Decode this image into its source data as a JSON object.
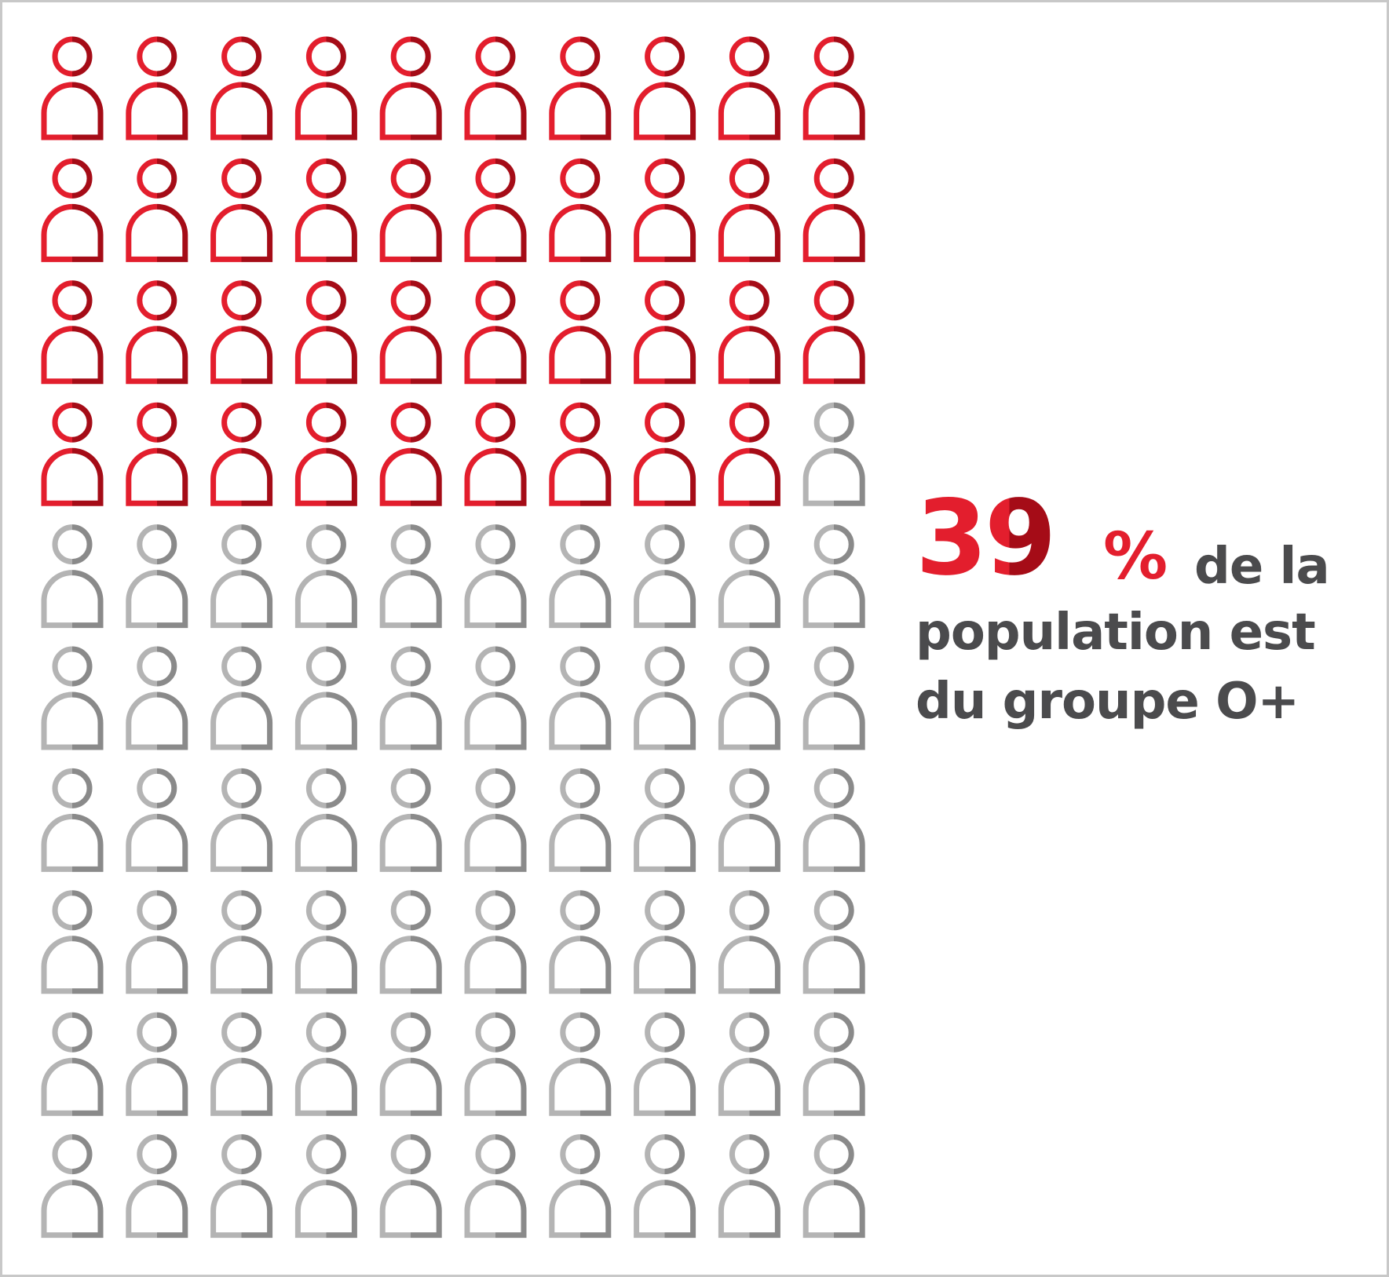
{
  "chart_data": {
    "type": "pictogram",
    "grid": {
      "rows": 10,
      "cols": 10
    },
    "total_icons": 100,
    "highlighted_count": 39,
    "highlighted_color": "#e31e2d",
    "highlighted_shade_color": "#a50c17",
    "rest_color": "#b4b4b4",
    "rest_shade_color": "#8a8a8a",
    "icon": "person-icon",
    "fill_order": "row-major-from-top-left"
  },
  "caption": {
    "value": "39",
    "percent_sign": "%",
    "text_line1": "de la",
    "text_line2": "population est",
    "text_line3": "du groupe O+"
  }
}
